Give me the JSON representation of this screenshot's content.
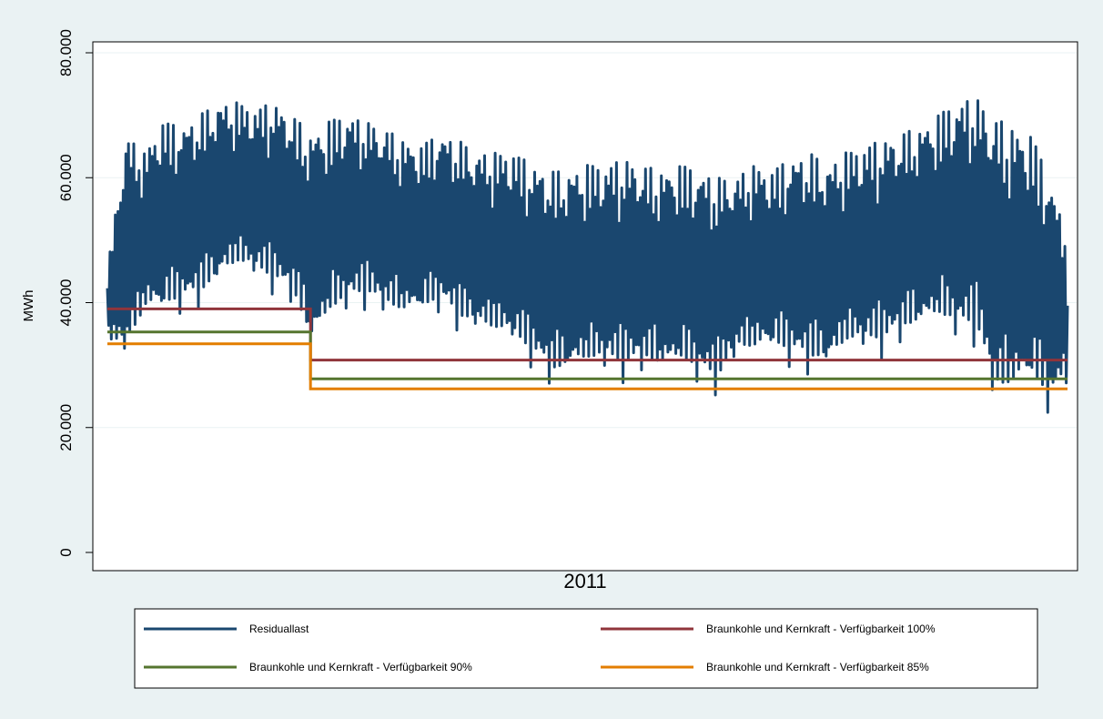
{
  "chart_data": {
    "type": "line",
    "title": "",
    "xlabel": "2011",
    "ylabel": "MWh",
    "ylim": [
      0,
      80000
    ],
    "yticks": [
      0,
      20000,
      40000,
      60000,
      80000
    ],
    "ytick_labels": [
      "0",
      "20.000",
      "40.000",
      "60.000",
      "80.000"
    ],
    "grid": true,
    "legend_position": "bottom",
    "x_unit": "week of year",
    "xlim": [
      0,
      52
    ],
    "series": [
      {
        "name": "Residuallast",
        "color": "#1a476f",
        "points": [
          [
            0,
            33000,
            45000
          ],
          [
            1,
            30000,
            67000
          ],
          [
            2,
            37000,
            64000
          ],
          [
            3,
            37000,
            69000
          ],
          [
            4,
            38000,
            68000
          ],
          [
            5,
            39000,
            70000
          ],
          [
            6,
            42000,
            72000
          ],
          [
            7,
            44000,
            72000
          ],
          [
            8,
            43000,
            71000
          ],
          [
            9,
            41000,
            72000
          ],
          [
            10,
            39000,
            70000
          ],
          [
            11,
            31000,
            67000
          ],
          [
            12,
            36000,
            69000
          ],
          [
            13,
            38000,
            70000
          ],
          [
            14,
            39000,
            69000
          ],
          [
            15,
            37000,
            68000
          ],
          [
            16,
            36000,
            66000
          ],
          [
            17,
            37000,
            65000
          ],
          [
            18,
            38000,
            67000
          ],
          [
            19,
            35000,
            66000
          ],
          [
            20,
            34000,
            64000
          ],
          [
            21,
            33000,
            64000
          ],
          [
            22,
            32000,
            64000
          ],
          [
            23,
            29000,
            62000
          ],
          [
            24,
            26000,
            61000
          ],
          [
            25,
            27000,
            61000
          ],
          [
            26,
            28000,
            62000
          ],
          [
            27,
            28000,
            62000
          ],
          [
            28,
            27000,
            63000
          ],
          [
            29,
            28000,
            62000
          ],
          [
            30,
            27000,
            61000
          ],
          [
            31,
            28000,
            62000
          ],
          [
            32,
            26000,
            61000
          ],
          [
            33,
            25000,
            60000
          ],
          [
            34,
            30000,
            60000
          ],
          [
            35,
            30000,
            62000
          ],
          [
            36,
            31000,
            61000
          ],
          [
            37,
            29000,
            63000
          ],
          [
            38,
            28000,
            64000
          ],
          [
            39,
            28000,
            62000
          ],
          [
            40,
            31000,
            64000
          ],
          [
            41,
            31000,
            65000
          ],
          [
            42,
            31000,
            66000
          ],
          [
            43,
            33000,
            67000
          ],
          [
            44,
            34000,
            68000
          ],
          [
            45,
            35000,
            70000
          ],
          [
            46,
            33000,
            72000
          ],
          [
            47,
            33000,
            73000
          ],
          [
            48,
            22000,
            70000
          ],
          [
            49,
            23000,
            68000
          ],
          [
            50,
            25000,
            67000
          ],
          [
            51,
            21000,
            60000
          ],
          [
            52,
            28000,
            51000
          ]
        ]
      },
      {
        "name": "Braunkohle und Kernkraft - Verfügbarkeit 100%",
        "color": "#90353b",
        "steps": [
          [
            0,
            11,
            39000
          ],
          [
            11,
            52,
            30800
          ]
        ]
      },
      {
        "name": "Braunkohle und Kernkraft - Verfügbarkeit 90%",
        "color": "#55752f",
        "steps": [
          [
            0,
            11,
            35300
          ],
          [
            11,
            52,
            27800
          ]
        ]
      },
      {
        "name": "Braunkohle und Kernkraft - Verfügbarkeit 85%",
        "color": "#e37e00",
        "steps": [
          [
            0,
            11,
            33400
          ],
          [
            11,
            52,
            26200
          ]
        ]
      }
    ]
  }
}
